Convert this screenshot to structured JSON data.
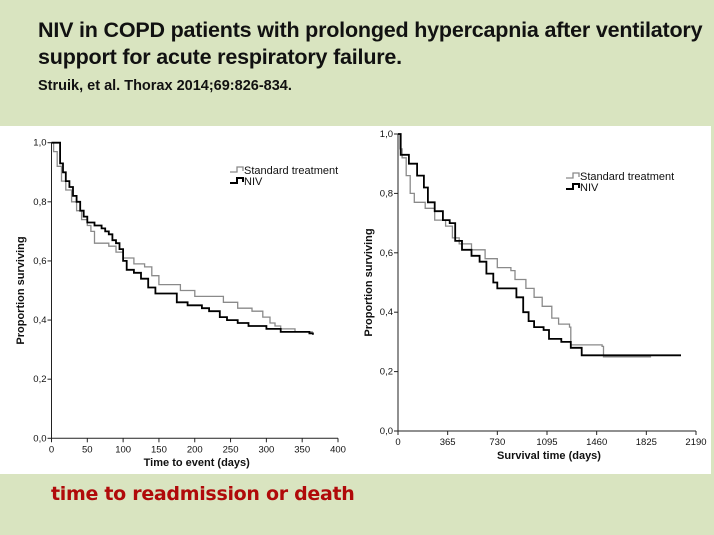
{
  "slide": {
    "title": "NIV in COPD patients with prolonged hypercapnia after ventilatory support for acute respiratory failure.",
    "citation": "Struik, et al. Thorax 2014;69:826-834.",
    "note": "time to readmission or death",
    "colors": {
      "background": "#d9e4c0",
      "note": "#b00a0a",
      "standard": "#8a8a8a",
      "niv": "#000000"
    }
  },
  "chart_data": [
    {
      "type": "line",
      "subtype": "kaplan-meier-step",
      "title": "",
      "xlabel": "Time to event (days)",
      "ylabel": "Proportion surviving",
      "xlim": [
        0,
        400
      ],
      "ylim": [
        0,
        1
      ],
      "xticks": [
        0,
        50,
        100,
        150,
        200,
        250,
        300,
        350,
        400
      ],
      "xtick_labels": [
        "0",
        "50",
        "100",
        "150",
        "200",
        "250",
        "300",
        "350",
        "400"
      ],
      "yticks": [
        0,
        0.2,
        0.4,
        0.6,
        0.8,
        1.0
      ],
      "ytick_labels": [
        "0,0",
        "0,2",
        "0,4",
        "0,6",
        "0,8",
        "1,0"
      ],
      "grid": false,
      "legend_position": "top-right",
      "series": [
        {
          "name": "Standard treatment",
          "color": "#8a8a8a",
          "x": [
            0,
            3,
            8,
            14,
            20,
            28,
            35,
            42,
            50,
            55,
            60,
            80,
            90,
            100,
            115,
            130,
            140,
            150,
            170,
            180,
            200,
            230,
            240,
            260,
            280,
            295,
            305,
            312,
            320,
            340,
            365
          ],
          "y": [
            1.0,
            0.97,
            0.92,
            0.87,
            0.84,
            0.8,
            0.77,
            0.74,
            0.72,
            0.7,
            0.66,
            0.65,
            0.63,
            0.61,
            0.59,
            0.58,
            0.55,
            0.52,
            0.52,
            0.5,
            0.48,
            0.48,
            0.46,
            0.44,
            0.43,
            0.41,
            0.39,
            0.38,
            0.37,
            0.36,
            0.36
          ]
        },
        {
          "name": "NIV",
          "color": "#000000",
          "x": [
            0,
            9,
            12,
            16,
            20,
            25,
            30,
            35,
            40,
            45,
            50,
            60,
            70,
            75,
            80,
            85,
            90,
            95,
            100,
            105,
            115,
            125,
            135,
            145,
            160,
            175,
            190,
            210,
            220,
            235,
            245,
            260,
            275,
            300,
            320,
            360,
            365
          ],
          "y": [
            1.0,
            1.0,
            0.93,
            0.9,
            0.87,
            0.85,
            0.82,
            0.8,
            0.77,
            0.75,
            0.73,
            0.72,
            0.71,
            0.7,
            0.69,
            0.67,
            0.66,
            0.64,
            0.6,
            0.57,
            0.56,
            0.54,
            0.51,
            0.49,
            0.49,
            0.46,
            0.45,
            0.44,
            0.43,
            0.41,
            0.4,
            0.39,
            0.38,
            0.37,
            0.36,
            0.355,
            0.35
          ]
        }
      ]
    },
    {
      "type": "line",
      "subtype": "kaplan-meier-step",
      "title": "",
      "xlabel": "Survival time (days)",
      "ylabel": "Proportion surviving",
      "xlim": [
        0,
        2190
      ],
      "ylim": [
        0,
        1
      ],
      "xticks": [
        0,
        365,
        730,
        1095,
        1460,
        1825,
        2190
      ],
      "xtick_labels": [
        "0",
        "365",
        "730",
        "1095",
        "1460",
        "1825",
        "2190"
      ],
      "yticks": [
        0,
        0.2,
        0.4,
        0.6,
        0.8,
        1.0
      ],
      "ytick_labels": [
        "0,0",
        "0,2",
        "0,4",
        "0,6",
        "0,8",
        "1,0"
      ],
      "grid": false,
      "legend_position": "top-right",
      "series": [
        {
          "name": "Standard treatment",
          "color": "#8a8a8a",
          "x": [
            0,
            15,
            30,
            60,
            90,
            120,
            200,
            270,
            350,
            400,
            450,
            540,
            640,
            730,
            830,
            860,
            940,
            1000,
            1060,
            1130,
            1180,
            1260,
            1270,
            1500,
            1510,
            1860
          ],
          "y": [
            1.0,
            0.95,
            0.92,
            0.86,
            0.8,
            0.77,
            0.75,
            0.71,
            0.69,
            0.65,
            0.63,
            0.61,
            0.58,
            0.55,
            0.54,
            0.51,
            0.48,
            0.45,
            0.42,
            0.38,
            0.36,
            0.35,
            0.29,
            0.285,
            0.25,
            0.25
          ]
        },
        {
          "name": "NIV",
          "color": "#000000",
          "x": [
            0,
            20,
            80,
            140,
            190,
            220,
            270,
            330,
            380,
            420,
            470,
            540,
            600,
            650,
            700,
            730,
            820,
            870,
            920,
            960,
            1000,
            1070,
            1110,
            1200,
            1270,
            1350,
            2080
          ],
          "y": [
            1.0,
            0.93,
            0.9,
            0.86,
            0.82,
            0.77,
            0.74,
            0.71,
            0.7,
            0.64,
            0.61,
            0.59,
            0.57,
            0.53,
            0.5,
            0.48,
            0.48,
            0.45,
            0.4,
            0.37,
            0.35,
            0.34,
            0.31,
            0.3,
            0.28,
            0.255,
            0.255
          ]
        }
      ]
    }
  ]
}
